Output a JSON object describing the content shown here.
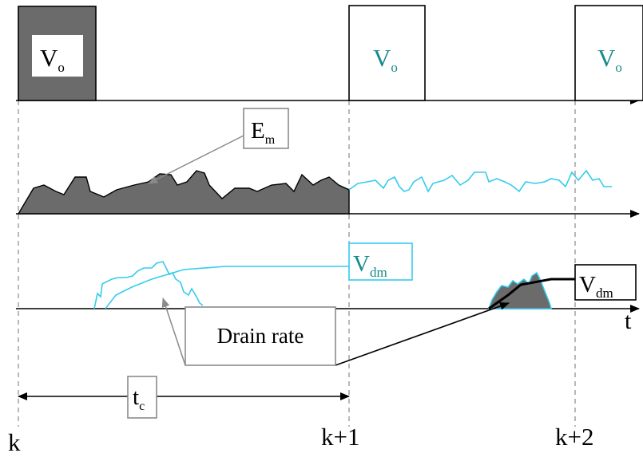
{
  "pulses": [
    {
      "symbol": "V",
      "subscript": "o",
      "style": "filled"
    },
    {
      "symbol": "V",
      "subscript": "o",
      "style": "outline"
    },
    {
      "symbol": "V",
      "subscript": "o",
      "style": "outline"
    }
  ],
  "labels": {
    "energy": {
      "main": "E",
      "sub": "m"
    },
    "drain_rate": "Drain rate",
    "vdm_cyan": {
      "main": "V",
      "sub": "dm"
    },
    "vdm_black": {
      "main": "V",
      "sub": "dm"
    },
    "tc": {
      "main": "t",
      "sub": "c"
    },
    "time_axis": "t"
  },
  "ticks": {
    "k": "k",
    "k1": "k+1",
    "k2": "k+2"
  },
  "colors": {
    "fill_gray": "#6b6b6b",
    "cyan": "#33ccee",
    "teal_text": "#178a8a",
    "guide": "#8a8a8a",
    "ink": "#000000"
  }
}
